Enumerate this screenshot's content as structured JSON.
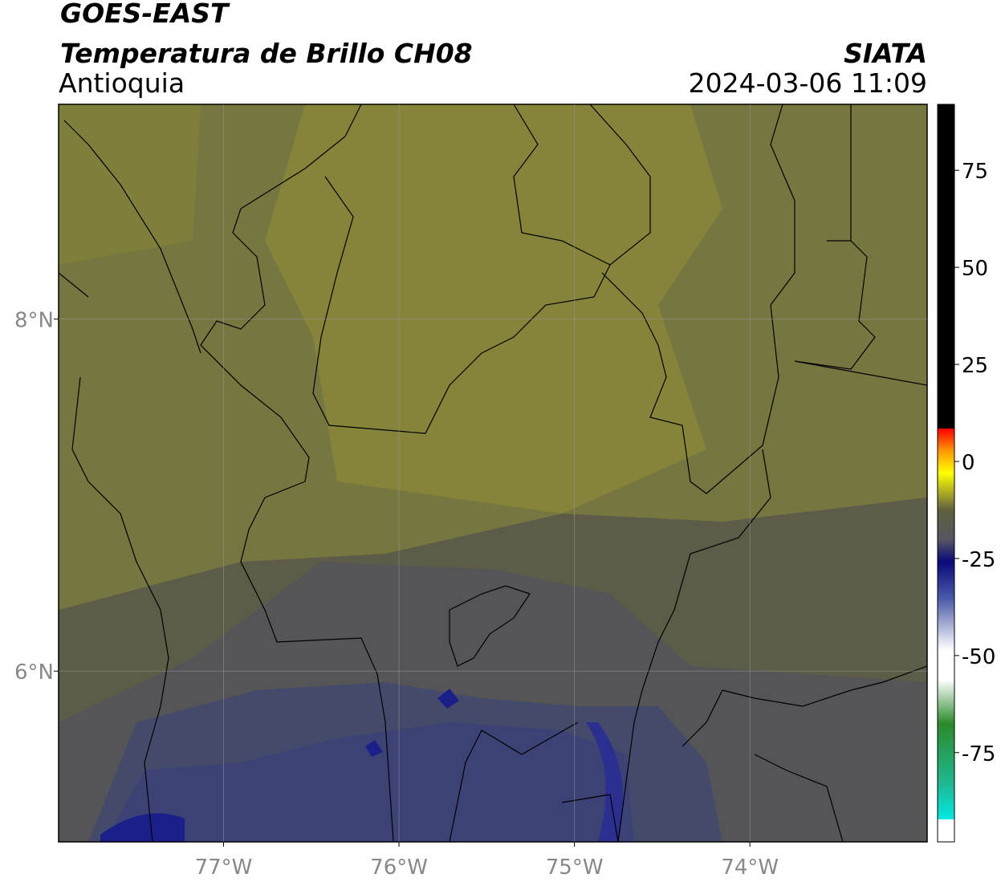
{
  "map": {
    "satellite": "GOES-EAST",
    "title": "Temperatura de Brillo CH08",
    "source": "SIATA",
    "region": "Antioquia",
    "datetime": "2024-03-06 11:09",
    "xlim": [
      -77.94,
      -72.99
    ],
    "ylim": [
      5.03,
      9.22
    ],
    "xticks": [
      {
        "value": -77,
        "label": "77°W"
      },
      {
        "value": -76,
        "label": "76°W"
      },
      {
        "value": -75,
        "label": "75°W"
      },
      {
        "value": -74,
        "label": "74°W"
      }
    ],
    "yticks": [
      {
        "value": 6,
        "label": "6°N"
      },
      {
        "value": 8,
        "label": "8°N"
      }
    ],
    "colorbar": {
      "lim": [
        -98,
        92
      ],
      "ticks": [
        -75,
        -50,
        -25,
        0,
        25,
        50,
        75
      ]
    }
  }
}
